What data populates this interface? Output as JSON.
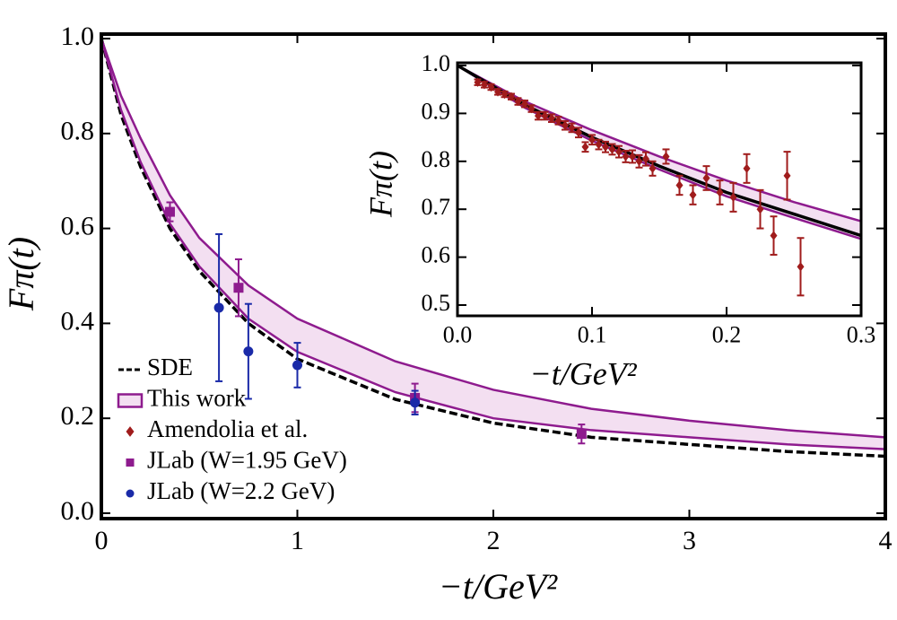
{
  "chart_data": [
    {
      "type": "line",
      "x_label": "−t/GeV²",
      "y_label": "Fπ(t)",
      "xlim": [
        0,
        4
      ],
      "ylim": [
        0,
        1
      ],
      "xticks": [
        0,
        1,
        2,
        3,
        4
      ],
      "yticks": [
        {
          "value": 0,
          "label": "0.0"
        },
        0.2,
        0.4,
        0.6,
        0.8,
        {
          "value": 1,
          "label": "1.0"
        }
      ],
      "x": [
        0,
        0.1,
        0.2,
        0.35,
        0.5,
        0.75,
        1,
        1.5,
        2,
        2.5,
        3,
        3.5,
        4
      ],
      "series": [
        {
          "name": "SDE",
          "color": "#000000",
          "style": "dashed",
          "values": [
            1,
            0.84,
            0.73,
            0.6,
            0.51,
            0.4,
            0.325,
            0.24,
            0.19,
            0.16,
            0.145,
            0.13,
            0.12
          ]
        },
        {
          "name": "This work",
          "color": "#8e1b8e",
          "fill": "#f3dff1",
          "upper": [
            1,
            0.88,
            0.79,
            0.67,
            0.58,
            0.48,
            0.41,
            0.32,
            0.26,
            0.22,
            0.195,
            0.175,
            0.16
          ],
          "lower": [
            1,
            0.85,
            0.74,
            0.61,
            0.52,
            0.41,
            0.34,
            0.255,
            0.2,
            0.175,
            0.16,
            0.145,
            0.135
          ]
        },
        {
          "name": "Amendolia et al.",
          "color": "#a01c1c",
          "marker": "diamond",
          "x": [
            0.015,
            0.02,
            0.025,
            0.03,
            0.035,
            0.04,
            0.045,
            0.05,
            0.055,
            0.06,
            0.065,
            0.07,
            0.075,
            0.08,
            0.085,
            0.09,
            0.095,
            0.1,
            0.105,
            0.11,
            0.115,
            0.12,
            0.125,
            0.13,
            0.135,
            0.14,
            0.145,
            0.155,
            0.165,
            0.175,
            0.185,
            0.195,
            0.205,
            0.215,
            0.225,
            0.235,
            0.245,
            0.255
          ],
          "values": [
            0.965,
            0.96,
            0.955,
            0.945,
            0.94,
            0.935,
            0.925,
            0.92,
            0.91,
            0.895,
            0.895,
            0.89,
            0.885,
            0.875,
            0.87,
            0.86,
            0.83,
            0.845,
            0.835,
            0.83,
            0.825,
            0.82,
            0.81,
            0.81,
            0.8,
            0.805,
            0.785,
            0.81,
            0.75,
            0.73,
            0.765,
            0.735,
            0.725,
            0.785,
            0.7,
            0.645,
            0.77,
            0.58
          ],
          "errors": [
            0.006,
            0.006,
            0.006,
            0.006,
            0.006,
            0.006,
            0.007,
            0.007,
            0.007,
            0.008,
            0.008,
            0.008,
            0.008,
            0.009,
            0.009,
            0.01,
            0.01,
            0.01,
            0.01,
            0.011,
            0.011,
            0.012,
            0.012,
            0.013,
            0.013,
            0.014,
            0.015,
            0.015,
            0.02,
            0.02,
            0.025,
            0.025,
            0.03,
            0.03,
            0.04,
            0.04,
            0.05,
            0.06
          ]
        },
        {
          "name": "JLab (W=1.95 GeV)",
          "color": "#8e1b8e",
          "marker": "square",
          "x": [
            0.35,
            0.7,
            1.6,
            2.45
          ],
          "values": [
            0.635,
            0.475,
            0.243,
            0.167
          ],
          "errors": [
            0.02,
            0.06,
            0.03,
            0.02
          ]
        },
        {
          "name": "JLab (W=2.2 GeV)",
          "color": "#1a2aa8",
          "marker": "circle",
          "x": [
            0.6,
            0.75,
            1,
            1.6
          ],
          "values": [
            0.433,
            0.341,
            0.312,
            0.233
          ],
          "errors": [
            0.155,
            0.1,
            0.047,
            0.025
          ]
        }
      ]
    },
    {
      "type": "line",
      "x_label": "−t/GeV²",
      "y_label": "Fπ(t)",
      "xlim": [
        0,
        0.3
      ],
      "ylim": [
        0.5,
        1
      ],
      "xticks": [
        {
          "value": 0,
          "label": "0.0"
        },
        0.1,
        0.2,
        0.3
      ],
      "yticks": [
        0.5,
        0.6,
        0.7,
        0.8,
        0.9,
        {
          "value": 1,
          "label": "1.0"
        }
      ],
      "x": [
        0,
        0.05,
        0.1,
        0.15,
        0.2,
        0.25,
        0.3
      ],
      "series": [
        {
          "color": "#8e1b8e",
          "fill": "#f3dff1",
          "upper": [
            1,
            0.925,
            0.865,
            0.81,
            0.76,
            0.715,
            0.675
          ],
          "lower": [
            1,
            0.912,
            0.843,
            0.783,
            0.727,
            0.682,
            0.638
          ]
        },
        {
          "color": "#000000",
          "style": "solid",
          "values": [
            1,
            0.918,
            0.85,
            0.79,
            0.735,
            0.69,
            0.645
          ]
        }
      ]
    }
  ]
}
